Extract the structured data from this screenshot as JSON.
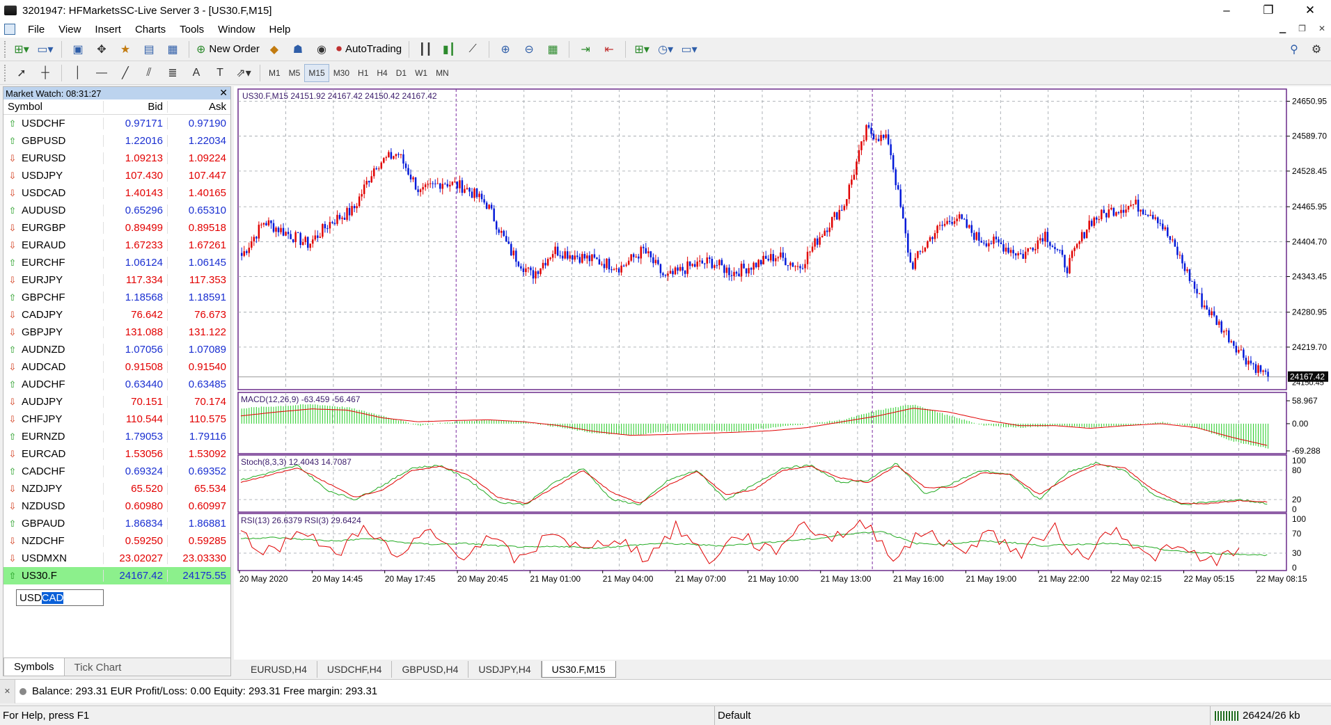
{
  "window": {
    "title": "3201947: HFMarketsSC-Live Server 3 - [US30.F,M15]",
    "min": "–",
    "max": "❐",
    "close": "✕"
  },
  "menu": [
    "File",
    "View",
    "Insert",
    "Charts",
    "Tools",
    "Window",
    "Help"
  ],
  "toolbar": {
    "new_order": "New Order",
    "autotrading": "AutoTrading"
  },
  "timeframes": [
    "M1",
    "M5",
    "M15",
    "M30",
    "H1",
    "H4",
    "D1",
    "W1",
    "MN"
  ],
  "active_timeframe": "M15",
  "market_watch": {
    "title": "Market Watch: 08:31:27",
    "close": "✕",
    "headers": {
      "symbol": "Symbol",
      "bid": "Bid",
      "ask": "Ask"
    },
    "rows": [
      {
        "symbol": "USDCHF",
        "bid": "0.97171",
        "ask": "0.97190",
        "dir": "up"
      },
      {
        "symbol": "GBPUSD",
        "bid": "1.22016",
        "ask": "1.22034",
        "dir": "up"
      },
      {
        "symbol": "EURUSD",
        "bid": "1.09213",
        "ask": "1.09224",
        "dir": "dn"
      },
      {
        "symbol": "USDJPY",
        "bid": "107.430",
        "ask": "107.447",
        "dir": "dn"
      },
      {
        "symbol": "USDCAD",
        "bid": "1.40143",
        "ask": "1.40165",
        "dir": "dn"
      },
      {
        "symbol": "AUDUSD",
        "bid": "0.65296",
        "ask": "0.65310",
        "dir": "up"
      },
      {
        "symbol": "EURGBP",
        "bid": "0.89499",
        "ask": "0.89518",
        "dir": "dn"
      },
      {
        "symbol": "EURAUD",
        "bid": "1.67233",
        "ask": "1.67261",
        "dir": "dn"
      },
      {
        "symbol": "EURCHF",
        "bid": "1.06124",
        "ask": "1.06145",
        "dir": "up"
      },
      {
        "symbol": "EURJPY",
        "bid": "117.334",
        "ask": "117.353",
        "dir": "dn"
      },
      {
        "symbol": "GBPCHF",
        "bid": "1.18568",
        "ask": "1.18591",
        "dir": "up"
      },
      {
        "symbol": "CADJPY",
        "bid": "76.642",
        "ask": "76.673",
        "dir": "dn"
      },
      {
        "symbol": "GBPJPY",
        "bid": "131.088",
        "ask": "131.122",
        "dir": "dn"
      },
      {
        "symbol": "AUDNZD",
        "bid": "1.07056",
        "ask": "1.07089",
        "dir": "up"
      },
      {
        "symbol": "AUDCAD",
        "bid": "0.91508",
        "ask": "0.91540",
        "dir": "dn"
      },
      {
        "symbol": "AUDCHF",
        "bid": "0.63440",
        "ask": "0.63485",
        "dir": "up"
      },
      {
        "symbol": "AUDJPY",
        "bid": "70.151",
        "ask": "70.174",
        "dir": "dn"
      },
      {
        "symbol": "CHFJPY",
        "bid": "110.544",
        "ask": "110.575",
        "dir": "dn"
      },
      {
        "symbol": "EURNZD",
        "bid": "1.79053",
        "ask": "1.79116",
        "dir": "up"
      },
      {
        "symbol": "EURCAD",
        "bid": "1.53056",
        "ask": "1.53092",
        "dir": "dn"
      },
      {
        "symbol": "CADCHF",
        "bid": "0.69324",
        "ask": "0.69352",
        "dir": "up"
      },
      {
        "symbol": "NZDJPY",
        "bid": "65.520",
        "ask": "65.534",
        "dir": "dn"
      },
      {
        "symbol": "NZDUSD",
        "bid": "0.60980",
        "ask": "0.60997",
        "dir": "dn"
      },
      {
        "symbol": "GBPAUD",
        "bid": "1.86834",
        "ask": "1.86881",
        "dir": "up"
      },
      {
        "symbol": "NZDCHF",
        "bid": "0.59250",
        "ask": "0.59285",
        "dir": "dn"
      },
      {
        "symbol": "USDMXN",
        "bid": "23.02027",
        "ask": "23.03330",
        "dir": "dn"
      },
      {
        "symbol": "US30.F",
        "bid": "24167.42",
        "ask": "24175.55",
        "dir": "up",
        "selected": true
      }
    ],
    "input": {
      "typed": "USD",
      "selected": "CAD"
    },
    "tabs": [
      "Symbols",
      "Tick Chart"
    ]
  },
  "chart_data": {
    "type": "candlestick",
    "title": "US30.F,M15  24151.92 24167.42 24150.42 24167.42",
    "y_ticks": [
      "24650.95",
      "24589.70",
      "24528.45",
      "24465.95",
      "24404.70",
      "24343.45",
      "24280.95",
      "24219.70"
    ],
    "ylim": [
      24150,
      24665
    ],
    "current_price": "24167.42",
    "current_price_value": 24167.42,
    "price_partial_label": "24150.45",
    "x_ticks": [
      "20 May 2020",
      "20 May 14:45",
      "20 May 17:45",
      "20 May 20:45",
      "21 May 01:00",
      "21 May 04:00",
      "21 May 07:00",
      "21 May 10:00",
      "21 May 13:00",
      "21 May 16:00",
      "21 May 19:00",
      "21 May 22:00",
      "22 May 02:15",
      "22 May 05:15",
      "22 May 08:15"
    ],
    "close_anchors": [
      24380,
      24440,
      24420,
      24400,
      24440,
      24460,
      24540,
      24560,
      24490,
      24510,
      24500,
      24470,
      24390,
      24345,
      24390,
      24380,
      24370,
      24360,
      24390,
      24340,
      24360,
      24370,
      24350,
      24365,
      24380,
      24360,
      24420,
      24470,
      24600,
      24580,
      24360,
      24420,
      24450,
      24410,
      24400,
      24380,
      24420,
      24360,
      24440,
      24460,
      24470,
      24450,
      24380,
      24300,
      24250,
      24200,
      24167
    ],
    "up_color": "#e00000",
    "down_color": "#0018d8",
    "macd": {
      "label": "MACD(12,26,9) -63.459 -56.467",
      "ticks": [
        "58.967",
        "0.00",
        "-69.288"
      ],
      "range": [
        -70,
        59
      ],
      "hist_anchors": [
        40,
        45,
        50,
        42,
        20,
        -5,
        5,
        10,
        5,
        -10,
        -25,
        -30,
        -20,
        -18,
        -20,
        -10,
        0,
        10,
        35,
        50,
        20,
        -5,
        -10,
        -5,
        -10,
        -5,
        5,
        -10,
        -45,
        -63
      ],
      "signal_anchors": [
        20,
        30,
        38,
        35,
        15,
        5,
        8,
        10,
        5,
        -5,
        -20,
        -30,
        -28,
        -25,
        -22,
        -18,
        -10,
        5,
        20,
        40,
        30,
        10,
        -5,
        -5,
        -12,
        -5,
        0,
        -10,
        -35,
        -56
      ],
      "hist_color": "#22cc22",
      "signal_color": "#e00000"
    },
    "stoch": {
      "label": "Stoch(8,3,3) 12.4043 14.7087",
      "ticks": [
        "100",
        "80",
        "20",
        "0"
      ],
      "main_anchors": [
        60,
        75,
        90,
        40,
        20,
        50,
        85,
        90,
        60,
        15,
        10,
        55,
        85,
        20,
        10,
        60,
        80,
        20,
        50,
        85,
        90,
        55,
        60,
        95,
        30,
        55,
        80,
        70,
        20,
        75,
        95,
        80,
        30,
        10,
        15,
        20,
        12
      ],
      "signal_anchors": [
        55,
        70,
        85,
        55,
        25,
        40,
        80,
        88,
        70,
        25,
        12,
        45,
        80,
        35,
        12,
        50,
        78,
        30,
        40,
        80,
        88,
        65,
        55,
        90,
        45,
        45,
        75,
        72,
        30,
        65,
        92,
        85,
        40,
        12,
        12,
        18,
        15
      ],
      "main_color": "#22aa22",
      "signal_color": "#e00000"
    },
    "rsi": {
      "label": "RSI(13) 26.6379  RSI(3) 29.6424",
      "ticks": [
        "100",
        "70",
        "30",
        "0"
      ],
      "rsi13_anchors": [
        60,
        62,
        58,
        55,
        60,
        52,
        48,
        50,
        45,
        42,
        44,
        40,
        45,
        50,
        48,
        45,
        50,
        55,
        60,
        70,
        75,
        50,
        48,
        55,
        52,
        45,
        48,
        50,
        45,
        35,
        30,
        28,
        26
      ],
      "rsi3_anchors": [
        70,
        30,
        85,
        20,
        90,
        15,
        75,
        25,
        60,
        10,
        80,
        30,
        65,
        20,
        85,
        15,
        70,
        30,
        90,
        60,
        95,
        20,
        80,
        30,
        75,
        25,
        85,
        15,
        90,
        20,
        40,
        15,
        30
      ],
      "rsi13_color": "#22aa22",
      "rsi3_color": "#e00000"
    }
  },
  "chart_tabs": [
    "EURUSD,H4",
    "USDCHF,H4",
    "GBPUSD,H4",
    "USDJPY,H4",
    "US30.F,M15"
  ],
  "active_chart_tab": "US30.F,M15",
  "terminal": {
    "summary": "Balance: 293.31 EUR  Profit/Loss: 0.00  Equity: 293.31  Free margin: 293.31"
  },
  "status": {
    "help": "For Help, press F1",
    "profile": "Default",
    "traffic": "26424/26 kb"
  }
}
